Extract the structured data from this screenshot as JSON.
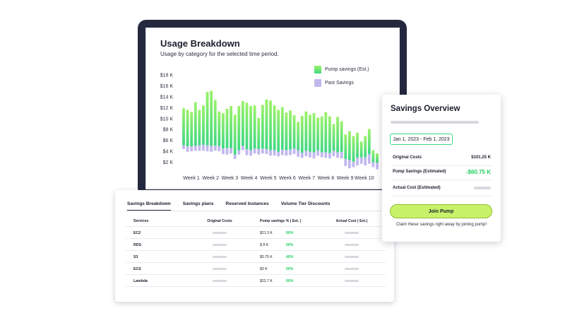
{
  "usage": {
    "title": "Usage Breakdown",
    "subtitle": "Usage by category for the selected time period.",
    "legend": [
      "Pump savings (Est.)",
      "Past Savings"
    ]
  },
  "chart_data": {
    "type": "bar",
    "stacked": true,
    "y_ticks": [
      "$18 K",
      "$16 K",
      "$14 K",
      "$12 K",
      "$10 K",
      "$8 K",
      "$6 K",
      "$4 K",
      "$2 K"
    ],
    "x_ticks": [
      "Week 1",
      "Week 2",
      "Week 3",
      "Week 4",
      "Week 5",
      "Week 6",
      "Week 7",
      "Week 8",
      "Week 9",
      "Week 10"
    ],
    "ylim": [
      0,
      18
    ],
    "unit": "$K",
    "series": [
      {
        "name": "Pump savings (Est.)",
        "color_top": "#9bf26a",
        "color_bottom": "#3ed882",
        "top": [
          11.9,
          11.6,
          11.2,
          13,
          11.6,
          12.4,
          14.9,
          15.1,
          13.4,
          11.3,
          11,
          11.8,
          12.3,
          10.7,
          12.3,
          13.2,
          12.9,
          12.3,
          12.4,
          10.1,
          12.5,
          13.5,
          13.3,
          12.4,
          11.6,
          12.1,
          11.1,
          11.5,
          10.6,
          9.4,
          10.5,
          11.3,
          10.7,
          11,
          10.2,
          10.4,
          11.2,
          10.4,
          9,
          10.3,
          9.5,
          7.1,
          7.7,
          6.8,
          7.4,
          5.8,
          6.8,
          8.1,
          4.2,
          3.6
        ],
        "bottom": [
          5.1,
          4.9,
          4.9,
          5,
          5.1,
          5.2,
          5.1,
          5,
          5,
          5,
          4.5,
          4.6,
          4.6,
          3.4,
          4.2,
          5,
          4.4,
          4.2,
          4.5,
          4.4,
          4.5,
          4.4,
          4.2,
          4.2,
          3.9,
          4.3,
          4.2,
          4.3,
          4.5,
          4.2,
          3.7,
          4.1,
          3.9,
          3.8,
          4.2,
          3.8,
          3.8,
          3.7,
          4.1,
          3.8,
          3.9,
          2.6,
          2.4,
          2.1,
          2.8,
          2.9,
          2.9,
          3.5,
          2,
          1.9
        ]
      },
      {
        "name": "Past Savings",
        "color": "#c2b8ee",
        "bottom": [
          4.4,
          3.9,
          4,
          4.1,
          4.1,
          4.1,
          4,
          3.9,
          4.1,
          4,
          3.5,
          3.4,
          3.6,
          2.6,
          3.4,
          4.2,
          3.3,
          3.2,
          3.6,
          3.4,
          3.6,
          3.5,
          3.2,
          3.2,
          3.1,
          3.3,
          3.2,
          3.3,
          3.5,
          3,
          2.8,
          3.1,
          2.9,
          2.7,
          3.2,
          2.9,
          2.8,
          2.7,
          3.1,
          2.8,
          2.7,
          1.3,
          0.9,
          1.1,
          1.4,
          1.7,
          1.4,
          1.7,
          1.1,
          0.7
        ]
      }
    ]
  },
  "table": {
    "tabs": [
      "Savings Breakdown",
      "Savings plans",
      "Reserved Instances",
      "Volume Tier Discounts"
    ],
    "headers": [
      "Services",
      "Original Costs",
      "Pump savings % ( Est. )",
      "Actual Cost ( Est.)"
    ],
    "rows": [
      {
        "service": "EC2",
        "pump": "$21.3 K",
        "pct": "60%"
      },
      {
        "service": "RDS",
        "pump": "$ 8 K",
        "pct": "60%"
      },
      {
        "service": "S3",
        "pump": "$5.75 K",
        "pct": "40%"
      },
      {
        "service": "ECS",
        "pump": "$3 K",
        "pct": "60%"
      },
      {
        "service": "Lambda",
        "pump": "$22.7 K",
        "pct": "60%"
      }
    ]
  },
  "overview": {
    "title": "Savings Overview",
    "date_range": "Jan 1, 2023 - Feb 1, 2023",
    "original_label": "Original Costs",
    "original_value": "$101.25 K",
    "pump_label": "Pump Savings (Estimated)",
    "pump_value": "-$60.75 K",
    "actual_label": "Actual Cost  (Estimated)",
    "join_label": "Join Pump",
    "claim_text": "Claim these savings right away by joining pump!"
  }
}
